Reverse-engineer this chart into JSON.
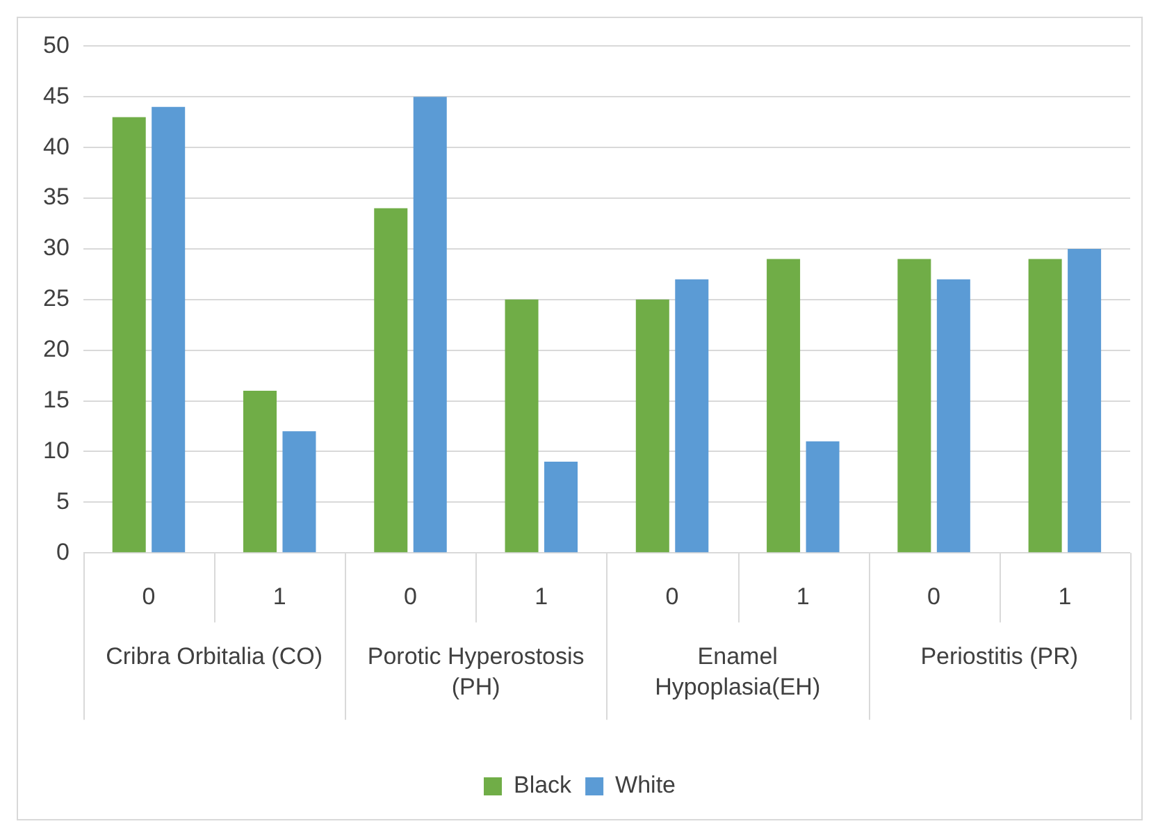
{
  "chart_data": {
    "type": "bar",
    "categories": [
      "0",
      "1",
      "0",
      "1",
      "0",
      "1",
      "0",
      "1"
    ],
    "series": [
      {
        "name": "Black",
        "color": "#70ad47",
        "values": [
          43,
          16,
          34,
          25,
          25,
          29,
          29,
          29
        ]
      },
      {
        "name": "White",
        "color": "#5b9bd5",
        "values": [
          44,
          12,
          45,
          9,
          27,
          11,
          27,
          30
        ]
      }
    ],
    "annotations": [
      "Cribra Orbitalia (CO)",
      "Porotic Hyperostosis (PH)",
      "Enamel Hypoplasia(EH)",
      "Periostitis (PR)"
    ],
    "ylim": [
      0,
      50
    ],
    "yticks": [
      0,
      5,
      10,
      15,
      20,
      25,
      30,
      35,
      40,
      45,
      50
    ],
    "grid": "y",
    "legend": "bottom"
  }
}
